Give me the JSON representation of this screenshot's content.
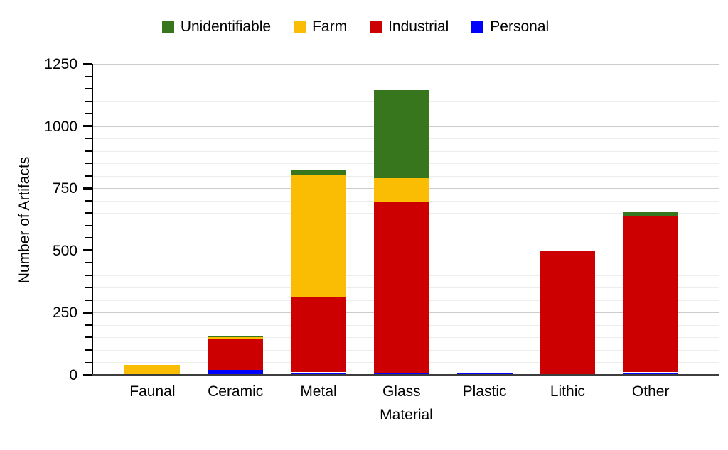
{
  "chart_data": {
    "type": "bar",
    "stacked": true,
    "xlabel": "Material",
    "ylabel": "Number of Artifacts",
    "categories": [
      "Faunal",
      "Ceramic",
      "Metal",
      "Glass",
      "Plastic",
      "Lithic",
      "Other"
    ],
    "series": [
      {
        "name": "Personal",
        "color": "#0000ff",
        "values": [
          0,
          20,
          10,
          8,
          5,
          0,
          10
        ]
      },
      {
        "name": "Industrial",
        "color": "#cc0000",
        "values": [
          0,
          125,
          305,
          685,
          0,
          500,
          630
        ]
      },
      {
        "name": "Farm",
        "color": "#fbbc04",
        "values": [
          40,
          5,
          490,
          97,
          0,
          0,
          0
        ]
      },
      {
        "name": "Unidentifiable",
        "color": "#38761d",
        "values": [
          0,
          8,
          20,
          355,
          0,
          0,
          15
        ]
      }
    ],
    "totals": [
      40,
      158,
      825,
      1145,
      5,
      500,
      655
    ],
    "legend_order": [
      "Unidentifiable",
      "Farm",
      "Industrial",
      "Personal"
    ],
    "ylim": [
      0,
      1250
    ],
    "yticks": [
      0,
      250,
      500,
      750,
      1000,
      1250
    ],
    "minor_tick_step": 50,
    "grid": true,
    "legend_position": "top"
  },
  "colors": {
    "background": "#ffffff",
    "text": "#000000",
    "gridline_major": "#cccccc",
    "gridline_minor": "#ededed",
    "axis": "#000000"
  }
}
